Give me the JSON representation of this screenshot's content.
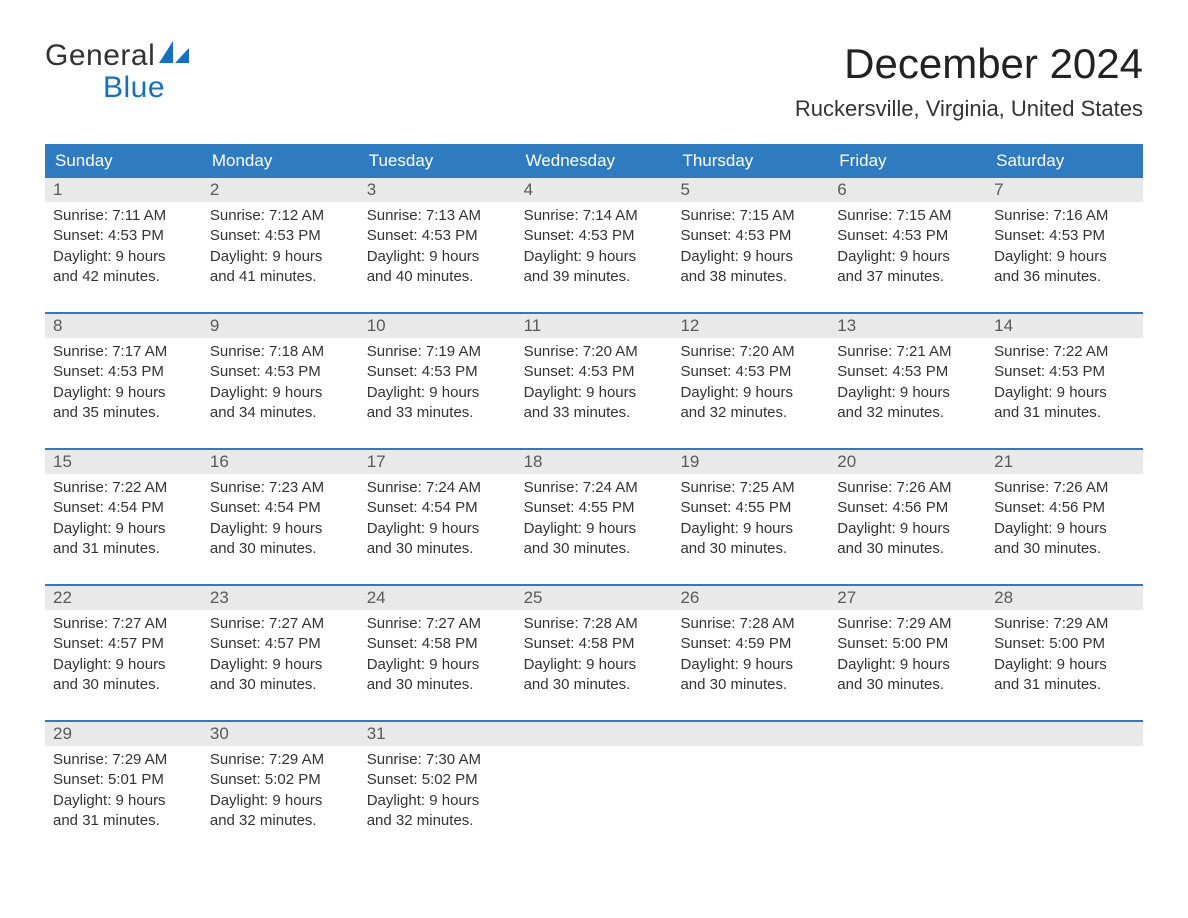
{
  "brand": {
    "line1": "General",
    "line2": "Blue",
    "text_color": "#333333",
    "accent_color": "#166fc1"
  },
  "title": "December 2024",
  "location": "Ruckersville, Virginia, United States",
  "colors": {
    "header_bg": "#2f7bbf",
    "header_text": "#ffffff",
    "daynum_bg": "#e9e9e9",
    "daynum_text": "#5a5a5a",
    "body_text": "#333333",
    "week_divider": "#2f7bbf",
    "page_bg": "#ffffff"
  },
  "typography": {
    "title_fontsize": 42,
    "location_fontsize": 22,
    "dow_fontsize": 17,
    "daynum_fontsize": 17,
    "body_fontsize": 15,
    "font_family": "Arial"
  },
  "layout": {
    "columns": 7,
    "rows": 5,
    "week_divider_width": 2,
    "row_gap": 16,
    "day_min_height": 118
  },
  "days_of_week": [
    "Sunday",
    "Monday",
    "Tuesday",
    "Wednesday",
    "Thursday",
    "Friday",
    "Saturday"
  ],
  "labels": {
    "sunrise": "Sunrise:",
    "sunset": "Sunset:",
    "daylight": "Daylight:"
  },
  "weeks": [
    [
      {
        "n": "1",
        "sunrise": "7:11 AM",
        "sunset": "4:53 PM",
        "dl1": "9 hours",
        "dl2": "and 42 minutes."
      },
      {
        "n": "2",
        "sunrise": "7:12 AM",
        "sunset": "4:53 PM",
        "dl1": "9 hours",
        "dl2": "and 41 minutes."
      },
      {
        "n": "3",
        "sunrise": "7:13 AM",
        "sunset": "4:53 PM",
        "dl1": "9 hours",
        "dl2": "and 40 minutes."
      },
      {
        "n": "4",
        "sunrise": "7:14 AM",
        "sunset": "4:53 PM",
        "dl1": "9 hours",
        "dl2": "and 39 minutes."
      },
      {
        "n": "5",
        "sunrise": "7:15 AM",
        "sunset": "4:53 PM",
        "dl1": "9 hours",
        "dl2": "and 38 minutes."
      },
      {
        "n": "6",
        "sunrise": "7:15 AM",
        "sunset": "4:53 PM",
        "dl1": "9 hours",
        "dl2": "and 37 minutes."
      },
      {
        "n": "7",
        "sunrise": "7:16 AM",
        "sunset": "4:53 PM",
        "dl1": "9 hours",
        "dl2": "and 36 minutes."
      }
    ],
    [
      {
        "n": "8",
        "sunrise": "7:17 AM",
        "sunset": "4:53 PM",
        "dl1": "9 hours",
        "dl2": "and 35 minutes."
      },
      {
        "n": "9",
        "sunrise": "7:18 AM",
        "sunset": "4:53 PM",
        "dl1": "9 hours",
        "dl2": "and 34 minutes."
      },
      {
        "n": "10",
        "sunrise": "7:19 AM",
        "sunset": "4:53 PM",
        "dl1": "9 hours",
        "dl2": "and 33 minutes."
      },
      {
        "n": "11",
        "sunrise": "7:20 AM",
        "sunset": "4:53 PM",
        "dl1": "9 hours",
        "dl2": "and 33 minutes."
      },
      {
        "n": "12",
        "sunrise": "7:20 AM",
        "sunset": "4:53 PM",
        "dl1": "9 hours",
        "dl2": "and 32 minutes."
      },
      {
        "n": "13",
        "sunrise": "7:21 AM",
        "sunset": "4:53 PM",
        "dl1": "9 hours",
        "dl2": "and 32 minutes."
      },
      {
        "n": "14",
        "sunrise": "7:22 AM",
        "sunset": "4:53 PM",
        "dl1": "9 hours",
        "dl2": "and 31 minutes."
      }
    ],
    [
      {
        "n": "15",
        "sunrise": "7:22 AM",
        "sunset": "4:54 PM",
        "dl1": "9 hours",
        "dl2": "and 31 minutes."
      },
      {
        "n": "16",
        "sunrise": "7:23 AM",
        "sunset": "4:54 PM",
        "dl1": "9 hours",
        "dl2": "and 30 minutes."
      },
      {
        "n": "17",
        "sunrise": "7:24 AM",
        "sunset": "4:54 PM",
        "dl1": "9 hours",
        "dl2": "and 30 minutes."
      },
      {
        "n": "18",
        "sunrise": "7:24 AM",
        "sunset": "4:55 PM",
        "dl1": "9 hours",
        "dl2": "and 30 minutes."
      },
      {
        "n": "19",
        "sunrise": "7:25 AM",
        "sunset": "4:55 PM",
        "dl1": "9 hours",
        "dl2": "and 30 minutes."
      },
      {
        "n": "20",
        "sunrise": "7:26 AM",
        "sunset": "4:56 PM",
        "dl1": "9 hours",
        "dl2": "and 30 minutes."
      },
      {
        "n": "21",
        "sunrise": "7:26 AM",
        "sunset": "4:56 PM",
        "dl1": "9 hours",
        "dl2": "and 30 minutes."
      }
    ],
    [
      {
        "n": "22",
        "sunrise": "7:27 AM",
        "sunset": "4:57 PM",
        "dl1": "9 hours",
        "dl2": "and 30 minutes."
      },
      {
        "n": "23",
        "sunrise": "7:27 AM",
        "sunset": "4:57 PM",
        "dl1": "9 hours",
        "dl2": "and 30 minutes."
      },
      {
        "n": "24",
        "sunrise": "7:27 AM",
        "sunset": "4:58 PM",
        "dl1": "9 hours",
        "dl2": "and 30 minutes."
      },
      {
        "n": "25",
        "sunrise": "7:28 AM",
        "sunset": "4:58 PM",
        "dl1": "9 hours",
        "dl2": "and 30 minutes."
      },
      {
        "n": "26",
        "sunrise": "7:28 AM",
        "sunset": "4:59 PM",
        "dl1": "9 hours",
        "dl2": "and 30 minutes."
      },
      {
        "n": "27",
        "sunrise": "7:29 AM",
        "sunset": "5:00 PM",
        "dl1": "9 hours",
        "dl2": "and 30 minutes."
      },
      {
        "n": "28",
        "sunrise": "7:29 AM",
        "sunset": "5:00 PM",
        "dl1": "9 hours",
        "dl2": "and 31 minutes."
      }
    ],
    [
      {
        "n": "29",
        "sunrise": "7:29 AM",
        "sunset": "5:01 PM",
        "dl1": "9 hours",
        "dl2": "and 31 minutes."
      },
      {
        "n": "30",
        "sunrise": "7:29 AM",
        "sunset": "5:02 PM",
        "dl1": "9 hours",
        "dl2": "and 32 minutes."
      },
      {
        "n": "31",
        "sunrise": "7:30 AM",
        "sunset": "5:02 PM",
        "dl1": "9 hours",
        "dl2": "and 32 minutes."
      },
      {
        "empty": true
      },
      {
        "empty": true
      },
      {
        "empty": true
      },
      {
        "empty": true
      }
    ]
  ]
}
